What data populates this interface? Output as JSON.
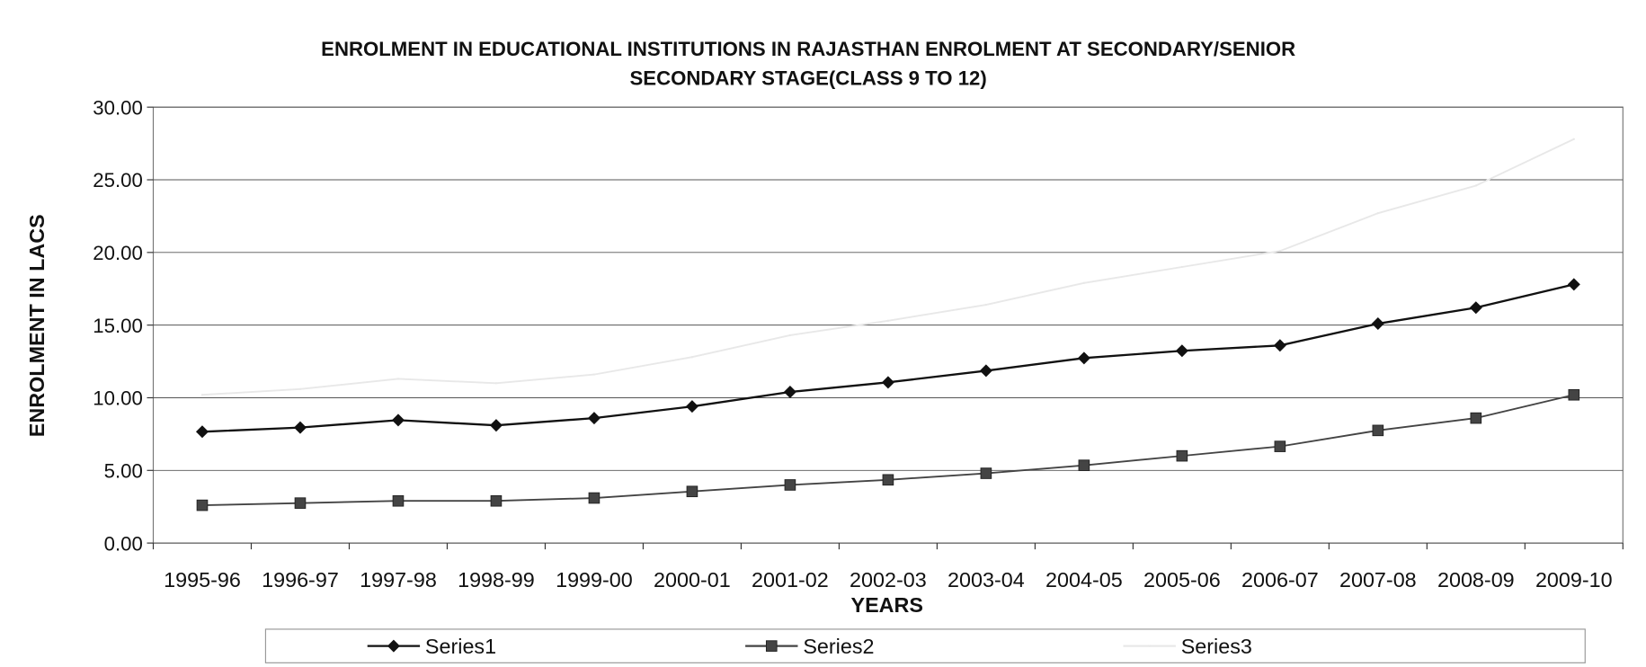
{
  "chart_data": {
    "type": "line",
    "title": [
      "ENROLMENT IN EDUCATIONAL INSTITUTIONS IN RAJASTHAN  ENROLMENT AT SECONDARY/SENIOR",
      "SECONDARY STAGE(CLASS 9 TO 12)"
    ],
    "xlabel": "YEARS",
    "ylabel": "ENROLMENT IN LACS",
    "categories": [
      "1995-96",
      "1996-97",
      "1997-98",
      "1998-99",
      "1999-00",
      "2000-01",
      "2001-02",
      "2002-03",
      "2003-04",
      "2004-05",
      "2005-06",
      "2006-07",
      "2007-08",
      "2008-09",
      "2009-10"
    ],
    "series": [
      {
        "name": "Series1",
        "color": "#111111",
        "marker": "diamond",
        "values": [
          7.66,
          7.95,
          8.46,
          8.1,
          8.6,
          9.4,
          10.4,
          11.06,
          11.86,
          12.73,
          13.23,
          13.6,
          15.1,
          16.2,
          17.8
        ]
      },
      {
        "name": "Series2",
        "color": "#444444",
        "marker": "square",
        "values": [
          2.6,
          2.75,
          2.9,
          2.9,
          3.1,
          3.55,
          4.0,
          4.35,
          4.8,
          5.35,
          6.0,
          6.65,
          7.75,
          8.6,
          10.2
        ]
      },
      {
        "name": "Series3",
        "color": "#e8e8e8",
        "marker": "none",
        "values": [
          10.2,
          10.6,
          11.3,
          11.0,
          11.6,
          12.8,
          14.3,
          15.3,
          16.4,
          17.9,
          19.0,
          20.1,
          22.7,
          24.6,
          27.8
        ]
      }
    ],
    "ylim": [
      0,
      30
    ],
    "yticks": [
      {
        "value": 0,
        "label": "0.00"
      },
      {
        "value": 5,
        "label": "5.00"
      },
      {
        "value": 10,
        "label": "10.00"
      },
      {
        "value": 15,
        "label": "15.00"
      },
      {
        "value": 20,
        "label": "20.00"
      },
      {
        "value": 25,
        "label": "25.00"
      },
      {
        "value": 30,
        "label": "30.00"
      }
    ],
    "grid": true,
    "legend": "bottom"
  }
}
